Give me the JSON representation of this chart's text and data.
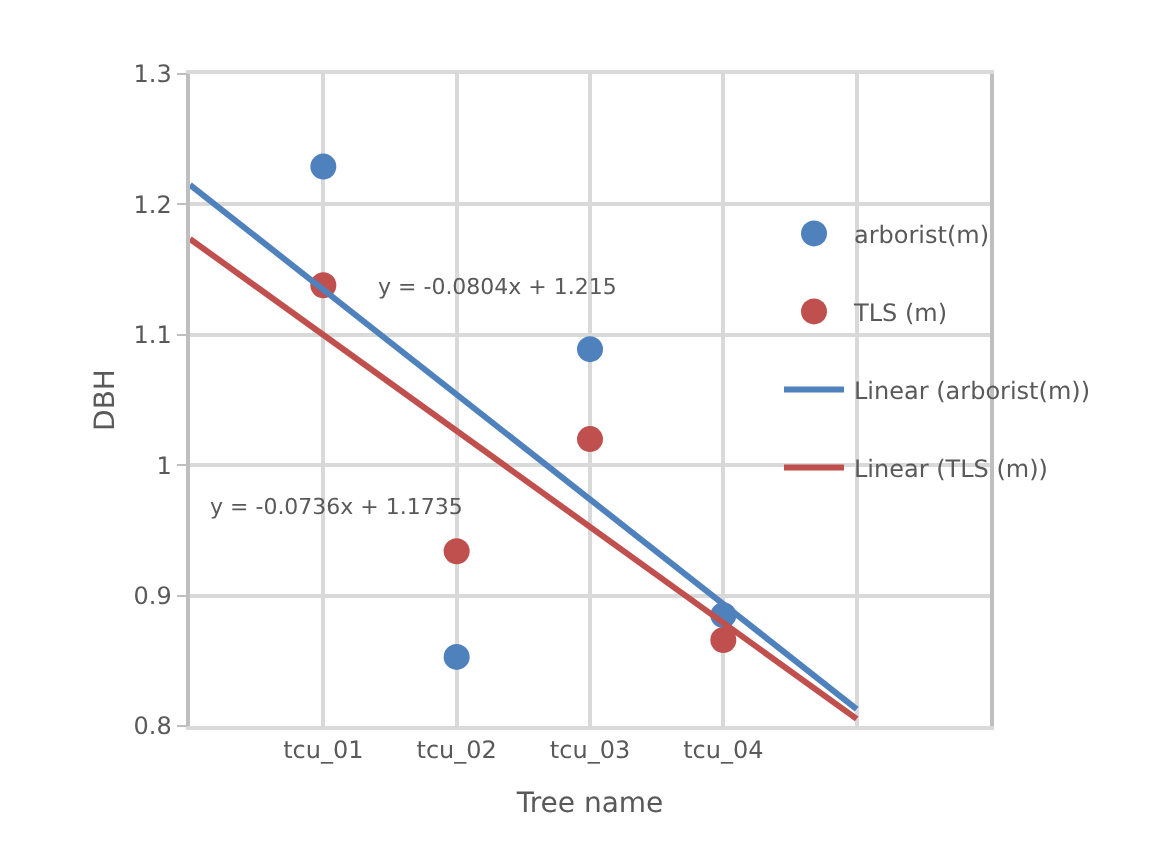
{
  "chart_data": {
    "type": "scatter",
    "xlabel": "Tree name",
    "ylabel": "DBH",
    "xlim": [
      0,
      6
    ],
    "xticks": [
      {
        "value": 1,
        "label": "tcu_01"
      },
      {
        "value": 2,
        "label": "tcu_02"
      },
      {
        "value": 3,
        "label": "tcu_03"
      },
      {
        "value": 4,
        "label": "tcu_04"
      },
      {
        "value": 5,
        "label": null
      }
    ],
    "ylim": [
      0.8,
      1.3
    ],
    "yticks": [
      {
        "value": 0.8,
        "label": "0.8"
      },
      {
        "value": 0.9,
        "label": "0.9"
      },
      {
        "value": 1,
        "label": "1"
      },
      {
        "value": 1.1,
        "label": "1.1"
      },
      {
        "value": 1.2,
        "label": "1.2"
      },
      {
        "value": 1.3,
        "label": "1.3"
      }
    ],
    "grid": true,
    "legend": "right",
    "series": [
      {
        "name": "arborist(m)",
        "marker": "circle",
        "color": "#4f81bd",
        "x": [
          1,
          2,
          3,
          4
        ],
        "values": [
          1.229,
          0.853,
          1.089,
          0.885
        ]
      },
      {
        "name": "TLS (m)",
        "marker": "circle",
        "color": "#c0504d",
        "x": [
          1,
          2,
          3,
          4
        ],
        "values": [
          1.138,
          0.934,
          1.02,
          0.866
        ]
      },
      {
        "name": "Linear (arborist(m))",
        "type": "line",
        "line_style": "solid",
        "color": "#4f81bd",
        "x": [
          0,
          5
        ],
        "values": [
          1.215,
          0.813
        ]
      },
      {
        "name": "Linear (TLS (m))",
        "type": "line",
        "line_style": "solid",
        "color": "#c0504d",
        "x": [
          0,
          5
        ],
        "values": [
          1.1735,
          0.8055
        ]
      }
    ],
    "annotations": [
      "y = -0.0804x + 1.215",
      "y = -0.0736x + 1.1735"
    ]
  }
}
